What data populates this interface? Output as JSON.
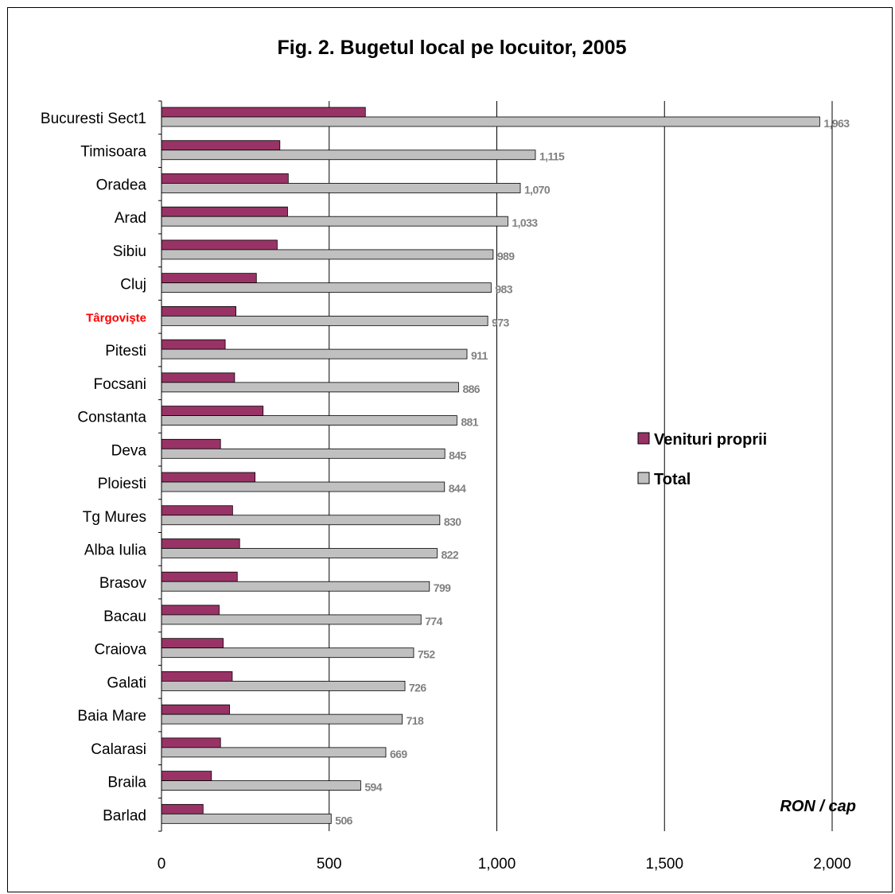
{
  "chart_data": {
    "type": "bar",
    "orientation": "horizontal",
    "title": "Fig. 2. Bugetul local pe locuitor, 2005",
    "unit_label": "RON / cap",
    "categories": [
      "Bucuresti Sect1",
      "Timisoara",
      "Oradea",
      "Arad",
      "Sibiu",
      "Cluj",
      "Târgovişte",
      "Pitesti",
      "Focsani",
      "Constanta",
      "Deva",
      "Ploiesti",
      "Tg Mures",
      "Alba Iulia",
      "Brasov",
      "Bacau",
      "Craiova",
      "Galati",
      "Baia Mare",
      "Calarasi",
      "Braila",
      "Barlad"
    ],
    "highlight_category": "Târgovişte",
    "highlight_color": "#ff0000",
    "series": [
      {
        "name": "Venituri proprii",
        "color": "#993366",
        "values": [
          608,
          353,
          378,
          376,
          345,
          283,
          222,
          190,
          218,
          303,
          176,
          279,
          212,
          233,
          226,
          172,
          184,
          211,
          203,
          176,
          149,
          124
        ]
      },
      {
        "name": "Total",
        "color": "#c0c0c0",
        "values": [
          1963,
          1115,
          1070,
          1033,
          989,
          983,
          973,
          911,
          886,
          881,
          845,
          844,
          830,
          822,
          799,
          774,
          752,
          726,
          718,
          669,
          594,
          506
        ],
        "data_labels": [
          "1,963",
          "1,115",
          "1,070",
          "1,033",
          "989",
          "983",
          "973",
          "911",
          "886",
          "881",
          "845",
          "844",
          "830",
          "822",
          "799",
          "774",
          "752",
          "726",
          "718",
          "669",
          "594",
          "506"
        ]
      }
    ],
    "xlim": [
      0,
      2000
    ],
    "xticks": [
      0,
      500,
      1000,
      1500,
      2000
    ],
    "xtick_labels": [
      "0",
      "500",
      "1,000",
      "1,500",
      "2,000"
    ],
    "grid": "vertical",
    "legend_position": "right"
  }
}
